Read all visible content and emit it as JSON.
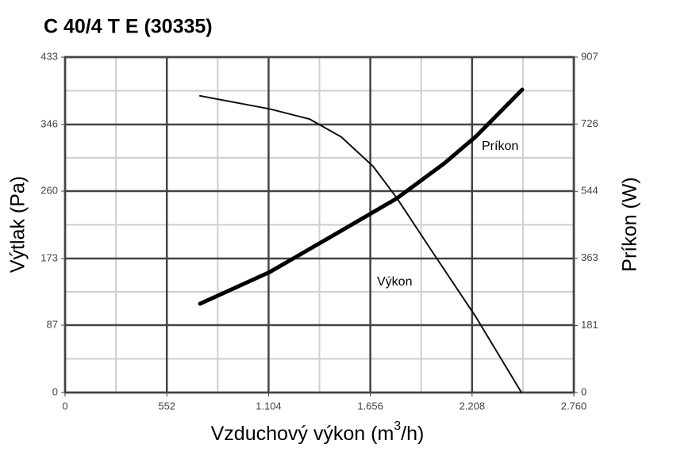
{
  "chart_data": {
    "type": "line",
    "title": "C 40/4 T E (30335)",
    "x_label_parts": [
      "Vzduchový výkon (m",
      "3",
      "/h)"
    ],
    "y_label": "Výtlak (Pa)",
    "y2_label": "Príkon (W)",
    "xlim": [
      0,
      2760
    ],
    "xticks": [
      0,
      552,
      {
        "value": 1104,
        "label": "1.104"
      },
      {
        "value": 1656,
        "label": "1.656"
      },
      {
        "value": 2208,
        "label": "2.208"
      },
      {
        "value": 2760,
        "label": "2.760"
      }
    ],
    "ylim": [
      0,
      433
    ],
    "yticks": [
      0,
      87,
      173,
      260,
      346,
      433
    ],
    "y2lim": [
      0,
      907
    ],
    "y2ticks": [
      0,
      181,
      363,
      544,
      726,
      907
    ],
    "grid": true,
    "minor_grid": true,
    "series": [
      {
        "name": "Výkon",
        "color": "#111111",
        "width": 2,
        "x": [
          732,
          1111,
          1326,
          1498,
          1671,
          1800,
          1972,
          2230,
          2476
        ],
        "values": [
          383,
          366,
          353,
          330,
          292,
          251,
          189,
          97,
          0
        ]
      },
      {
        "name": "Príkon",
        "color": "#000000",
        "width": 5,
        "axis": "y2",
        "x": [
          732,
          1111,
          1455,
          1800,
          2058,
          2230,
          2480
        ],
        "values": [
          240,
          326,
          425,
          525,
          620,
          693,
          819
        ]
      }
    ]
  }
}
